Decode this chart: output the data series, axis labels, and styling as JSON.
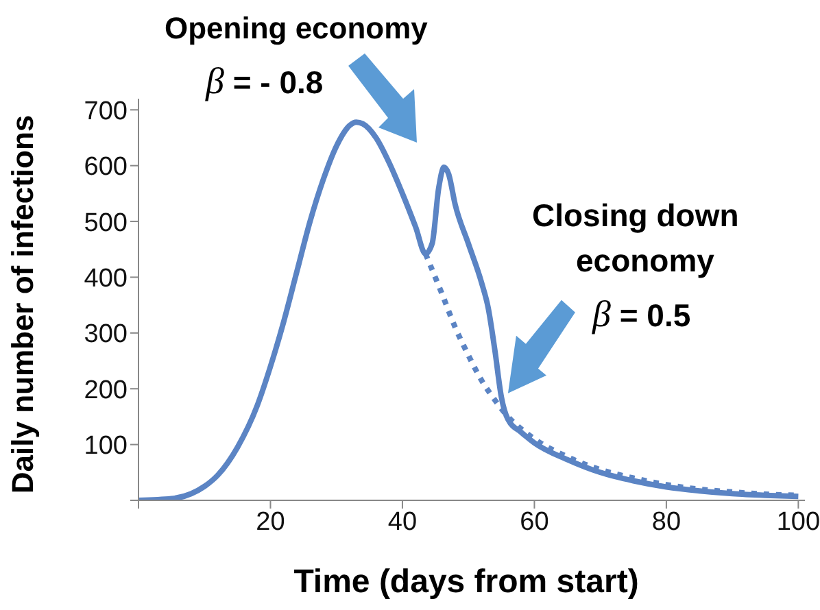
{
  "chart_data": {
    "type": "line",
    "xlabel": "Time (days from start)",
    "ylabel": "Daily number of infections",
    "annotations": [
      "Opening economy",
      "β = - 0.8",
      "Closing down economy",
      {
        "text": "β = 0.5",
        "x": 56,
        "y": 192
      }
    ],
    "xlim": [
      0,
      101
    ],
    "xticks": [
      {
        "value": 0,
        "label": null
      },
      20,
      40,
      60,
      80,
      100
    ],
    "ylim": [
      0,
      720
    ],
    "yticks": [
      {
        "value": 0,
        "label": null
      },
      100,
      200,
      300,
      400,
      500,
      600,
      700
    ],
    "marker": "none",
    "series": [
      {
        "color": "#5b84c4",
        "line_style": "solid",
        "x": [
          0,
          5,
          8,
          10,
          12,
          15,
          18,
          20,
          22,
          24,
          26,
          28,
          30,
          32,
          33,
          34,
          36,
          38,
          40,
          42,
          43.5,
          44.5,
          45.5,
          46.3,
          47,
          48,
          50,
          52,
          53,
          54,
          55,
          56,
          58,
          60,
          65,
          70,
          75,
          80,
          85,
          90,
          95,
          100
        ],
        "values": [
          0,
          3,
          12,
          25,
          45,
          95,
          170,
          240,
          320,
          410,
          500,
          575,
          635,
          672,
          678,
          675,
          650,
          605,
          550,
          490,
          442,
          460,
          560,
          597,
          585,
          530,
          460,
          390,
          345,
          270,
          185,
          145,
          122,
          103,
          73,
          50,
          35,
          24,
          17,
          12,
          9,
          7
        ]
      },
      {
        "color": "#5b84c4",
        "line_style": "dotted",
        "x": [
          43.5,
          46,
          48,
          50,
          52,
          54,
          56,
          58,
          60,
          65,
          70,
          75,
          80,
          85,
          90,
          95,
          100
        ],
        "values": [
          442,
          370,
          310,
          260,
          215,
          180,
          150,
          128,
          110,
          78,
          55,
          40,
          28,
          20,
          15,
          11,
          9
        ]
      }
    ]
  }
}
